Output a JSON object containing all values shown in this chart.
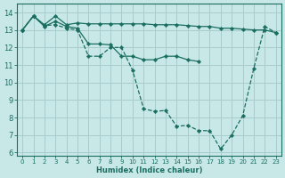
{
  "xlabel": "Humidex (Indice chaleur)",
  "bg_color": "#c8e8e8",
  "grid_color": "#a8cccc",
  "line_color": "#1a6e60",
  "xlim": [
    -0.5,
    23.5
  ],
  "ylim": [
    5.8,
    14.5
  ],
  "yticks": [
    6,
    7,
    8,
    9,
    10,
    11,
    12,
    13,
    14
  ],
  "xticks": [
    0,
    1,
    2,
    3,
    4,
    5,
    6,
    7,
    8,
    9,
    10,
    11,
    12,
    13,
    14,
    15,
    16,
    17,
    18,
    19,
    20,
    21,
    22,
    23
  ],
  "line1_y": [
    13.0,
    13.8,
    13.3,
    13.8,
    13.3,
    13.4,
    13.35,
    13.35,
    13.35,
    13.35,
    13.35,
    13.35,
    13.3,
    13.3,
    13.3,
    13.25,
    13.2,
    13.2,
    13.1,
    13.1,
    13.05,
    13.0,
    13.0,
    12.85
  ],
  "line2_y": [
    13.0,
    13.8,
    13.2,
    13.5,
    13.2,
    13.1,
    12.2,
    12.2,
    12.15,
    11.5,
    11.5,
    11.3,
    11.3,
    11.5,
    11.5,
    11.3,
    11.2,
    null,
    null,
    null,
    null,
    null,
    null,
    null
  ],
  "line3_y": [
    13.0,
    13.8,
    13.25,
    13.3,
    13.1,
    13.0,
    11.5,
    11.5,
    12.0,
    12.0,
    10.7,
    8.5,
    8.35,
    8.4,
    7.5,
    7.55,
    7.25,
    7.25,
    6.2,
    7.0,
    8.1,
    10.8,
    13.2,
    12.85
  ]
}
